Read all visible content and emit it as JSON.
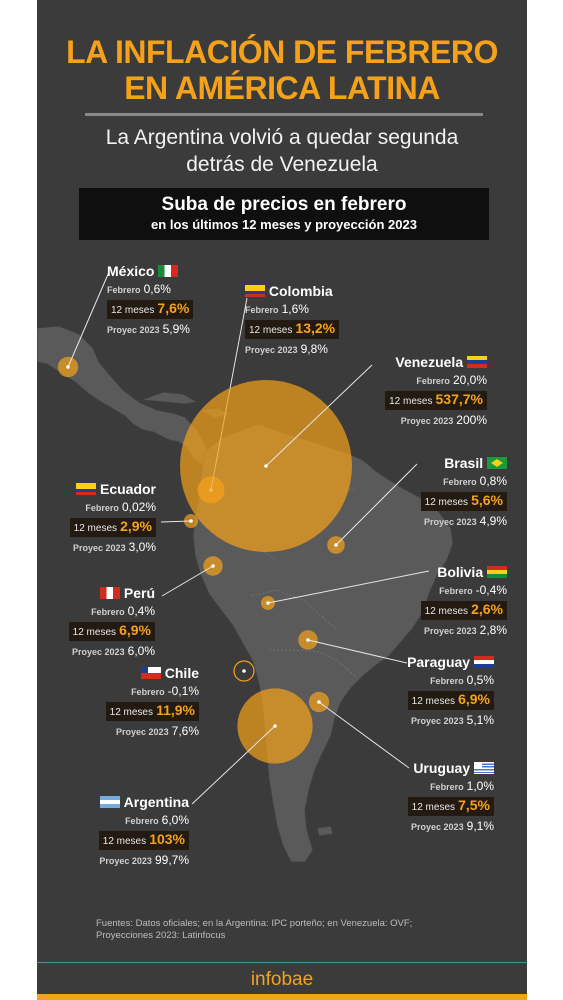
{
  "title_line1": "LA INFLACIÓN DE FEBRERO",
  "title_line2": "EN AMÉRICA LATINA",
  "subtitle_line1": "La Argentina volvió a quedar segunda",
  "subtitle_line2": "detrás de Venezuela",
  "banner_line1": "Suba de precios en febrero",
  "banner_line2": "en los últimos 12 meses y proyección 2023",
  "labels": {
    "febrero": "Febrero",
    "twelve_months": "12 meses",
    "proyec": "Proyec 2023"
  },
  "colors": {
    "background": "#3b3b3b",
    "accent": "#f5a21a",
    "land": "#5a5a5a"
  },
  "countries": [
    {
      "name": "México",
      "flag": "mexico-flag",
      "febrero": "0,6%",
      "doce_meses": "7,6%",
      "proyec": "5,9%"
    },
    {
      "name": "Colombia",
      "flag": "colombia-flag",
      "febrero": "1,6%",
      "doce_meses": "13,2%",
      "proyec": "9,8%"
    },
    {
      "name": "Venezuela",
      "flag": "venezuela-flag",
      "febrero": "20,0%",
      "doce_meses": "537,7%",
      "proyec": "200%"
    },
    {
      "name": "Brasil",
      "flag": "brazil-flag",
      "febrero": "0,8%",
      "doce_meses": "5,6%",
      "proyec": "4,9%"
    },
    {
      "name": "Ecuador",
      "flag": "ecuador-flag",
      "febrero": "0,02%",
      "doce_meses": "2,9%",
      "proyec": "3,0%"
    },
    {
      "name": "Perú",
      "flag": "peru-flag",
      "febrero": "0,4%",
      "doce_meses": "6,9%",
      "proyec": "6,0%"
    },
    {
      "name": "Bolivia",
      "flag": "bolivia-flag",
      "febrero": "-0,4%",
      "doce_meses": "2,6%",
      "proyec": "2,8%"
    },
    {
      "name": "Paraguay",
      "flag": "paraguay-flag",
      "febrero": "0,5%",
      "doce_meses": "6,9%",
      "proyec": "5,1%"
    },
    {
      "name": "Chile",
      "flag": "chile-flag",
      "febrero": "-0,1%",
      "doce_meses": "11,9%",
      "proyec": "7,6%"
    },
    {
      "name": "Uruguay",
      "flag": "uruguay-flag",
      "febrero": "1,0%",
      "doce_meses": "7,5%",
      "proyec": "9,1%"
    },
    {
      "name": "Argentina",
      "flag": "argentina-flag",
      "febrero": "6,0%",
      "doce_meses": "103%",
      "proyec": "99,7%"
    }
  ],
  "sources_line1": "Fuentes: Datos oficiales; en la Argentina: IPC porteño; en Venezuela: OVF;",
  "sources_line2": "Proyecciones 2023: Latinfocus",
  "logo": "infobae"
}
